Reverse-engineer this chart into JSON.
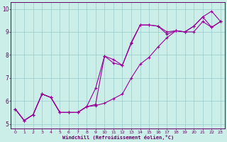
{
  "xlabel": "Windchill (Refroidissement éolien,°C)",
  "bg_color": "#cceee8",
  "line_color": "#990099",
  "grid_color": "#99cccc",
  "axis_color": "#660066",
  "tick_color": "#660066",
  "xlim": [
    -0.5,
    23.5
  ],
  "ylim": [
    4.8,
    10.3
  ],
  "xticks": [
    0,
    1,
    2,
    3,
    4,
    5,
    6,
    7,
    8,
    9,
    10,
    11,
    12,
    13,
    14,
    15,
    16,
    17,
    18,
    19,
    20,
    21,
    22,
    23
  ],
  "yticks": [
    5,
    6,
    7,
    8,
    9,
    10
  ],
  "line1_x": [
    0,
    1,
    2,
    3,
    4,
    5,
    6,
    7,
    8,
    9,
    10,
    11,
    12,
    13,
    14,
    15,
    16,
    17,
    18,
    19,
    20,
    21,
    22,
    23
  ],
  "line1_y": [
    5.65,
    5.15,
    5.4,
    6.3,
    6.15,
    5.5,
    5.5,
    5.5,
    5.75,
    5.8,
    5.9,
    6.1,
    6.3,
    7.0,
    7.6,
    7.9,
    8.35,
    8.75,
    9.05,
    9.0,
    9.0,
    9.45,
    9.2,
    9.45
  ],
  "line2_x": [
    0,
    1,
    2,
    3,
    4,
    5,
    6,
    7,
    8,
    9,
    10,
    11,
    12,
    13,
    14,
    15,
    16,
    17,
    18,
    19,
    20,
    21,
    22,
    23
  ],
  "line2_y": [
    5.65,
    5.15,
    5.4,
    6.3,
    6.15,
    5.5,
    5.5,
    5.5,
    5.75,
    6.55,
    7.95,
    7.65,
    7.55,
    8.55,
    9.3,
    9.3,
    9.25,
    8.9,
    9.05,
    9.0,
    9.25,
    9.65,
    9.2,
    9.45
  ],
  "line3_x": [
    0,
    1,
    2,
    3,
    4,
    5,
    6,
    7,
    8,
    9,
    10,
    11,
    12,
    13,
    14,
    15,
    16,
    17,
    18,
    19,
    20,
    21,
    22,
    23
  ],
  "line3_y": [
    5.65,
    5.15,
    5.4,
    6.3,
    6.15,
    5.5,
    5.5,
    5.5,
    5.75,
    5.85,
    7.95,
    7.8,
    7.55,
    8.5,
    9.3,
    9.3,
    9.25,
    9.0,
    9.05,
    9.0,
    9.25,
    9.65,
    9.9,
    9.45
  ]
}
